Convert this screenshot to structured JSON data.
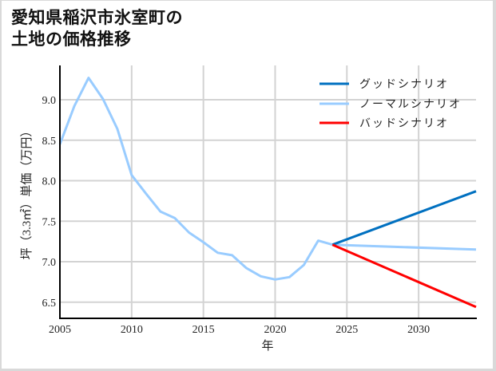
{
  "title": {
    "line1": "愛知県稲沢市氷室町の",
    "line2": "土地の価格推移"
  },
  "chart_data": {
    "type": "line",
    "title": "愛知県稲沢市氷室町の土地の価格推移",
    "xlabel": "年",
    "ylabel": "坪（3.3㎡）単価（万円）",
    "xlim": [
      2005,
      2034
    ],
    "ylim": [
      6.3,
      9.45
    ],
    "xticks": [
      2005,
      2010,
      2015,
      2020,
      2025,
      2030
    ],
    "yticks": [
      6.5,
      7.0,
      7.5,
      8.0,
      8.5,
      9.0
    ],
    "ytick_labels": [
      "6.5",
      "7.0",
      "7.5",
      "8.0",
      "8.5",
      "9.0"
    ],
    "grid": true,
    "legend_position": "upper right",
    "series": [
      {
        "name": "グッドシナリオ",
        "color": "#0070c0",
        "x": [
          2024,
          2034
        ],
        "values": [
          7.21,
          7.87
        ]
      },
      {
        "name": "ノーマルシナリオ",
        "color": "#99ccff",
        "x": [
          2005,
          2006,
          2007,
          2008,
          2009,
          2010,
          2011,
          2012,
          2013,
          2014,
          2015,
          2016,
          2017,
          2018,
          2019,
          2020,
          2021,
          2022,
          2023,
          2024,
          2034
        ],
        "values": [
          8.45,
          8.92,
          9.27,
          9.01,
          8.64,
          8.07,
          7.84,
          7.62,
          7.54,
          7.36,
          7.24,
          7.11,
          7.08,
          6.92,
          6.82,
          6.78,
          6.81,
          6.96,
          7.26,
          7.21,
          7.15
        ]
      },
      {
        "name": "バッドシナリオ",
        "color": "#ff0000",
        "x": [
          2024,
          2034
        ],
        "values": [
          7.21,
          6.44
        ]
      }
    ]
  }
}
